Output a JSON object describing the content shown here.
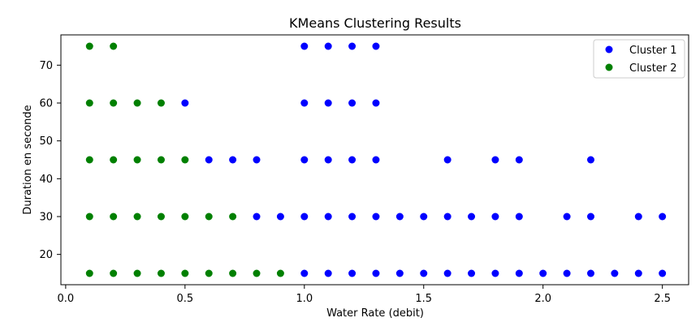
{
  "chart_data": {
    "type": "scatter",
    "title": "KMeans Clustering Results",
    "xlabel": "Water Rate (debit)",
    "ylabel": "Duration en seconde",
    "xlim": [
      -0.02,
      2.61
    ],
    "ylim": [
      12,
      78
    ],
    "xticks": [
      0.0,
      0.5,
      1.0,
      1.5,
      2.0,
      2.5
    ],
    "xtick_labels": [
      "0.0",
      "0.5",
      "1.0",
      "1.5",
      "2.0",
      "2.5"
    ],
    "yticks": [
      20,
      30,
      40,
      50,
      60,
      70
    ],
    "ytick_labels": [
      "20",
      "30",
      "40",
      "50",
      "60",
      "70"
    ],
    "grid": false,
    "legend_position": "top-right",
    "series": [
      {
        "name": "Cluster 1",
        "color": "#0000ff",
        "points": [
          [
            1.0,
            75
          ],
          [
            1.1,
            75
          ],
          [
            1.2,
            75
          ],
          [
            1.3,
            75
          ],
          [
            0.5,
            60
          ],
          [
            1.0,
            60
          ],
          [
            1.1,
            60
          ],
          [
            1.2,
            60
          ],
          [
            1.3,
            60
          ],
          [
            0.6,
            45
          ],
          [
            0.7,
            45
          ],
          [
            0.8,
            45
          ],
          [
            1.0,
            45
          ],
          [
            1.1,
            45
          ],
          [
            1.2,
            45
          ],
          [
            1.3,
            45
          ],
          [
            1.6,
            45
          ],
          [
            1.8,
            45
          ],
          [
            1.9,
            45
          ],
          [
            2.2,
            45
          ],
          [
            0.8,
            30
          ],
          [
            0.9,
            30
          ],
          [
            1.0,
            30
          ],
          [
            1.1,
            30
          ],
          [
            1.2,
            30
          ],
          [
            1.3,
            30
          ],
          [
            1.4,
            30
          ],
          [
            1.5,
            30
          ],
          [
            1.6,
            30
          ],
          [
            1.7,
            30
          ],
          [
            1.8,
            30
          ],
          [
            1.9,
            30
          ],
          [
            2.1,
            30
          ],
          [
            2.2,
            30
          ],
          [
            2.4,
            30
          ],
          [
            2.5,
            30
          ],
          [
            1.0,
            15
          ],
          [
            1.1,
            15
          ],
          [
            1.2,
            15
          ],
          [
            1.3,
            15
          ],
          [
            1.4,
            15
          ],
          [
            1.5,
            15
          ],
          [
            1.6,
            15
          ],
          [
            1.7,
            15
          ],
          [
            1.8,
            15
          ],
          [
            1.9,
            15
          ],
          [
            2.0,
            15
          ],
          [
            2.1,
            15
          ],
          [
            2.2,
            15
          ],
          [
            2.3,
            15
          ],
          [
            2.4,
            15
          ],
          [
            2.5,
            15
          ]
        ]
      },
      {
        "name": "Cluster 2",
        "color": "#008000",
        "points": [
          [
            0.1,
            75
          ],
          [
            0.2,
            75
          ],
          [
            0.1,
            60
          ],
          [
            0.2,
            60
          ],
          [
            0.3,
            60
          ],
          [
            0.4,
            60
          ],
          [
            0.1,
            45
          ],
          [
            0.2,
            45
          ],
          [
            0.3,
            45
          ],
          [
            0.4,
            45
          ],
          [
            0.5,
            45
          ],
          [
            0.1,
            30
          ],
          [
            0.2,
            30
          ],
          [
            0.3,
            30
          ],
          [
            0.4,
            30
          ],
          [
            0.5,
            30
          ],
          [
            0.6,
            30
          ],
          [
            0.7,
            30
          ],
          [
            0.1,
            15
          ],
          [
            0.2,
            15
          ],
          [
            0.3,
            15
          ],
          [
            0.4,
            15
          ],
          [
            0.5,
            15
          ],
          [
            0.6,
            15
          ],
          [
            0.7,
            15
          ],
          [
            0.8,
            15
          ],
          [
            0.9,
            15
          ]
        ]
      }
    ]
  }
}
